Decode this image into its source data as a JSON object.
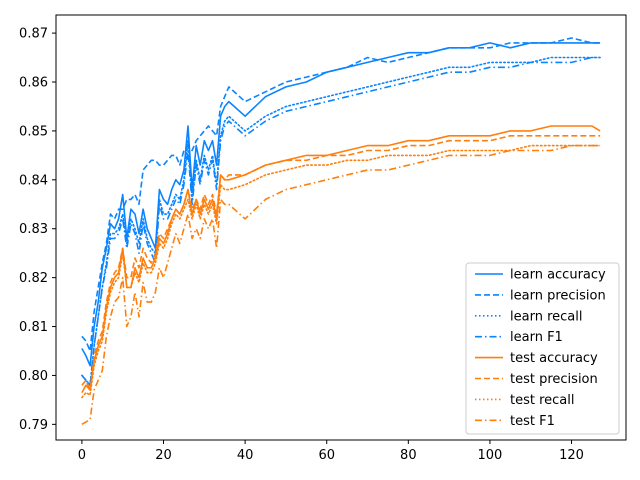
{
  "chart_data": {
    "type": "line",
    "title": "",
    "xlabel": "",
    "ylabel": "",
    "xlim": [
      -6.35,
      133.35
    ],
    "ylim": [
      0.7868,
      0.8737
    ],
    "xticks": [
      0,
      20,
      40,
      60,
      80,
      100,
      120
    ],
    "yticks": [
      0.79,
      0.8,
      0.81,
      0.82,
      0.83,
      0.84,
      0.85,
      0.86,
      0.87
    ],
    "xtick_labels": [
      "0",
      "20",
      "40",
      "60",
      "80",
      "100",
      "120"
    ],
    "ytick_labels": [
      "0.79",
      "0.80",
      "0.81",
      "0.82",
      "0.83",
      "0.84",
      "0.85",
      "0.86",
      "0.87"
    ],
    "grid": false,
    "legend_position": "lower right",
    "colors": {
      "learn": "#1f77b4",
      "learn_drawn": "#0a84ff",
      "test": "#ff7f0e"
    },
    "series": [
      {
        "name": "learn accuracy",
        "group": "learn",
        "style": "solid",
        "x": [
          0,
          1,
          2,
          3,
          4,
          5,
          6,
          7,
          8,
          9,
          10,
          11,
          12,
          13,
          14,
          15,
          16,
          17,
          18,
          19,
          20,
          21,
          22,
          23,
          24,
          25,
          26,
          27,
          28,
          29,
          30,
          31,
          32,
          33,
          34,
          35,
          36,
          40,
          45,
          50,
          55,
          60,
          65,
          70,
          75,
          80,
          85,
          90,
          95,
          100,
          105,
          110,
          115,
          120,
          125,
          127
        ],
        "y": [
          0.8055,
          0.804,
          0.802,
          0.81,
          0.815,
          0.822,
          0.826,
          0.831,
          0.83,
          0.832,
          0.837,
          0.828,
          0.834,
          0.833,
          0.829,
          0.834,
          0.83,
          0.828,
          0.826,
          0.838,
          0.836,
          0.835,
          0.838,
          0.84,
          0.839,
          0.842,
          0.851,
          0.838,
          0.847,
          0.843,
          0.848,
          0.846,
          0.848,
          0.843,
          0.853,
          0.855,
          0.856,
          0.853,
          0.857,
          0.859,
          0.86,
          0.862,
          0.863,
          0.864,
          0.865,
          0.866,
          0.866,
          0.867,
          0.867,
          0.868,
          0.867,
          0.868,
          0.868,
          0.868,
          0.868,
          0.868
        ]
      },
      {
        "name": "learn precision",
        "group": "learn",
        "style": "dashed",
        "x": [
          0,
          1,
          2,
          3,
          4,
          5,
          6,
          7,
          8,
          9,
          10,
          11,
          12,
          13,
          14,
          15,
          16,
          17,
          18,
          19,
          20,
          21,
          22,
          23,
          24,
          25,
          26,
          27,
          28,
          29,
          30,
          31,
          32,
          33,
          34,
          35,
          36,
          40,
          45,
          50,
          55,
          60,
          65,
          70,
          75,
          80,
          85,
          90,
          95,
          100,
          105,
          110,
          115,
          120,
          125,
          127
        ],
        "y": [
          0.808,
          0.807,
          0.805,
          0.813,
          0.818,
          0.823,
          0.827,
          0.833,
          0.832,
          0.834,
          0.834,
          0.836,
          0.836,
          0.837,
          0.835,
          0.842,
          0.843,
          0.844,
          0.844,
          0.843,
          0.843,
          0.844,
          0.845,
          0.845,
          0.843,
          0.846,
          0.847,
          0.846,
          0.848,
          0.849,
          0.85,
          0.851,
          0.85,
          0.849,
          0.855,
          0.857,
          0.859,
          0.856,
          0.858,
          0.86,
          0.861,
          0.862,
          0.863,
          0.865,
          0.864,
          0.865,
          0.866,
          0.867,
          0.867,
          0.867,
          0.868,
          0.868,
          0.868,
          0.869,
          0.868,
          0.868
        ]
      },
      {
        "name": "learn recall",
        "group": "learn",
        "style": "dotted",
        "x": [
          0,
          1,
          2,
          3,
          4,
          5,
          6,
          7,
          8,
          9,
          10,
          11,
          12,
          13,
          14,
          15,
          16,
          17,
          18,
          19,
          20,
          21,
          22,
          23,
          24,
          25,
          26,
          27,
          28,
          29,
          30,
          31,
          32,
          33,
          34,
          35,
          36,
          40,
          45,
          50,
          55,
          60,
          65,
          70,
          75,
          80,
          85,
          90,
          95,
          100,
          105,
          110,
          115,
          120,
          125,
          127
        ],
        "y": [
          0.8,
          0.799,
          0.798,
          0.806,
          0.812,
          0.818,
          0.823,
          0.829,
          0.829,
          0.83,
          0.833,
          0.827,
          0.832,
          0.83,
          0.827,
          0.832,
          0.828,
          0.826,
          0.825,
          0.836,
          0.833,
          0.833,
          0.835,
          0.837,
          0.836,
          0.84,
          0.848,
          0.836,
          0.844,
          0.84,
          0.845,
          0.842,
          0.845,
          0.839,
          0.849,
          0.852,
          0.853,
          0.85,
          0.853,
          0.855,
          0.856,
          0.857,
          0.858,
          0.859,
          0.86,
          0.861,
          0.862,
          0.863,
          0.863,
          0.864,
          0.864,
          0.864,
          0.865,
          0.865,
          0.865,
          0.865
        ]
      },
      {
        "name": "learn F1",
        "group": "learn",
        "style": "dashdot",
        "x": [
          0,
          1,
          2,
          3,
          4,
          5,
          6,
          7,
          8,
          9,
          10,
          11,
          12,
          13,
          14,
          15,
          16,
          17,
          18,
          19,
          20,
          21,
          22,
          23,
          24,
          25,
          26,
          27,
          28,
          29,
          30,
          31,
          32,
          33,
          34,
          35,
          36,
          40,
          45,
          50,
          55,
          60,
          65,
          70,
          75,
          80,
          85,
          90,
          95,
          100,
          105,
          110,
          115,
          120,
          125,
          127
        ],
        "y": [
          0.8,
          0.799,
          0.798,
          0.806,
          0.812,
          0.818,
          0.822,
          0.828,
          0.828,
          0.829,
          0.832,
          0.826,
          0.831,
          0.829,
          0.825,
          0.831,
          0.827,
          0.825,
          0.823,
          0.835,
          0.832,
          0.832,
          0.834,
          0.836,
          0.835,
          0.839,
          0.846,
          0.835,
          0.843,
          0.839,
          0.844,
          0.841,
          0.844,
          0.838,
          0.848,
          0.851,
          0.852,
          0.849,
          0.852,
          0.854,
          0.855,
          0.856,
          0.857,
          0.858,
          0.859,
          0.86,
          0.861,
          0.862,
          0.862,
          0.863,
          0.863,
          0.864,
          0.864,
          0.864,
          0.865,
          0.865
        ]
      },
      {
        "name": "test accuracy",
        "group": "test",
        "style": "solid",
        "x": [
          0,
          1,
          2,
          3,
          4,
          5,
          6,
          7,
          8,
          9,
          10,
          11,
          12,
          13,
          14,
          15,
          16,
          17,
          18,
          19,
          20,
          21,
          22,
          23,
          24,
          25,
          26,
          27,
          28,
          29,
          30,
          31,
          32,
          33,
          34,
          35,
          36,
          40,
          45,
          50,
          55,
          60,
          65,
          70,
          75,
          80,
          85,
          90,
          95,
          100,
          105,
          110,
          115,
          120,
          125,
          127
        ],
        "y": [
          0.7965,
          0.798,
          0.797,
          0.803,
          0.806,
          0.808,
          0.814,
          0.818,
          0.82,
          0.821,
          0.826,
          0.818,
          0.818,
          0.822,
          0.82,
          0.824,
          0.822,
          0.822,
          0.824,
          0.828,
          0.827,
          0.829,
          0.832,
          0.834,
          0.833,
          0.835,
          0.838,
          0.833,
          0.836,
          0.833,
          0.836,
          0.834,
          0.836,
          0.832,
          0.841,
          0.84,
          0.84,
          0.841,
          0.843,
          0.844,
          0.845,
          0.845,
          0.846,
          0.847,
          0.847,
          0.848,
          0.848,
          0.849,
          0.849,
          0.849,
          0.85,
          0.85,
          0.851,
          0.851,
          0.851,
          0.85
        ]
      },
      {
        "name": "test precision",
        "group": "test",
        "style": "dashed",
        "x": [
          0,
          1,
          2,
          3,
          4,
          5,
          6,
          7,
          8,
          9,
          10,
          11,
          12,
          13,
          14,
          15,
          16,
          17,
          18,
          19,
          20,
          21,
          22,
          23,
          24,
          25,
          26,
          27,
          28,
          29,
          30,
          31,
          32,
          33,
          34,
          35,
          36,
          40,
          45,
          50,
          55,
          60,
          65,
          70,
          75,
          80,
          85,
          90,
          95,
          100,
          105,
          110,
          115,
          120,
          125,
          127
        ],
        "y": [
          0.798,
          0.799,
          0.797,
          0.804,
          0.807,
          0.809,
          0.815,
          0.819,
          0.821,
          0.822,
          0.826,
          0.82,
          0.82,
          0.824,
          0.822,
          0.826,
          0.824,
          0.823,
          0.825,
          0.829,
          0.828,
          0.83,
          0.832,
          0.834,
          0.833,
          0.835,
          0.838,
          0.834,
          0.836,
          0.834,
          0.837,
          0.835,
          0.837,
          0.833,
          0.841,
          0.84,
          0.841,
          0.841,
          0.843,
          0.844,
          0.844,
          0.845,
          0.845,
          0.846,
          0.846,
          0.847,
          0.847,
          0.848,
          0.848,
          0.848,
          0.849,
          0.849,
          0.849,
          0.849,
          0.849,
          0.849
        ]
      },
      {
        "name": "test recall",
        "group": "test",
        "style": "dotted",
        "x": [
          0,
          1,
          2,
          3,
          4,
          5,
          6,
          7,
          8,
          9,
          10,
          11,
          12,
          13,
          14,
          15,
          16,
          17,
          18,
          19,
          20,
          21,
          22,
          23,
          24,
          25,
          26,
          27,
          28,
          29,
          30,
          31,
          32,
          33,
          34,
          35,
          36,
          40,
          45,
          50,
          55,
          60,
          65,
          70,
          75,
          80,
          85,
          90,
          95,
          100,
          105,
          110,
          115,
          120,
          125,
          127
        ],
        "y": [
          0.7955,
          0.7965,
          0.796,
          0.802,
          0.805,
          0.807,
          0.813,
          0.817,
          0.819,
          0.82,
          0.825,
          0.818,
          0.818,
          0.821,
          0.819,
          0.823,
          0.821,
          0.821,
          0.823,
          0.827,
          0.826,
          0.828,
          0.831,
          0.833,
          0.832,
          0.834,
          0.836,
          0.832,
          0.835,
          0.832,
          0.835,
          0.833,
          0.835,
          0.831,
          0.839,
          0.838,
          0.838,
          0.839,
          0.841,
          0.842,
          0.843,
          0.843,
          0.844,
          0.844,
          0.845,
          0.845,
          0.845,
          0.846,
          0.846,
          0.846,
          0.846,
          0.847,
          0.847,
          0.847,
          0.847,
          0.847
        ]
      },
      {
        "name": "test F1",
        "group": "test",
        "style": "dashdot",
        "x": [
          0,
          1,
          2,
          3,
          4,
          5,
          6,
          7,
          8,
          9,
          10,
          11,
          12,
          13,
          14,
          15,
          16,
          17,
          18,
          19,
          20,
          21,
          22,
          23,
          24,
          25,
          26,
          27,
          28,
          29,
          30,
          31,
          32,
          33,
          34,
          35,
          36,
          40,
          45,
          50,
          55,
          60,
          65,
          70,
          75,
          80,
          85,
          90,
          95,
          100,
          105,
          110,
          115,
          120,
          125,
          127
        ],
        "y": [
          0.79,
          0.7905,
          0.791,
          0.797,
          0.799,
          0.801,
          0.808,
          0.812,
          0.815,
          0.816,
          0.82,
          0.81,
          0.812,
          0.817,
          0.812,
          0.819,
          0.815,
          0.815,
          0.817,
          0.822,
          0.82,
          0.823,
          0.826,
          0.829,
          0.827,
          0.83,
          0.833,
          0.828,
          0.83,
          0.828,
          0.832,
          0.83,
          0.832,
          0.826,
          0.836,
          0.835,
          0.835,
          0.832,
          0.836,
          0.838,
          0.839,
          0.84,
          0.841,
          0.842,
          0.842,
          0.843,
          0.844,
          0.845,
          0.845,
          0.845,
          0.846,
          0.846,
          0.846,
          0.847,
          0.847,
          0.847
        ]
      }
    ]
  }
}
